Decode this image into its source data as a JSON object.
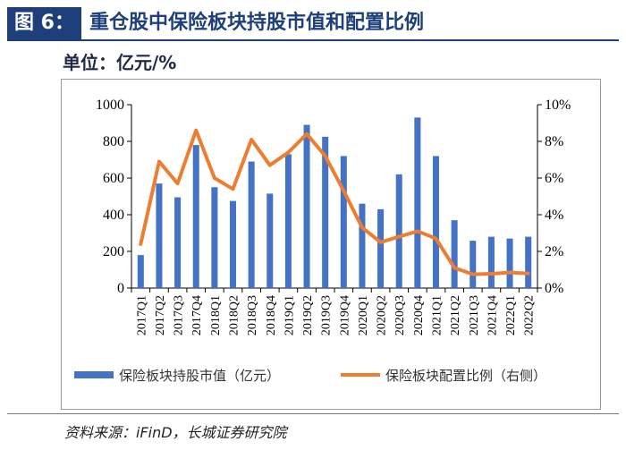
{
  "header": {
    "tag": "图 6：",
    "title": "重仓股中保险板块持股市值和配置比例"
  },
  "unit": "单位：亿元/%",
  "source": "资料来源：iFinD，长城证券研究院",
  "colors": {
    "bar": "#4472c4",
    "line": "#ed7d31",
    "title": "#1f3f7a"
  },
  "chart_data": {
    "type": "bar",
    "categories": [
      "2017Q1",
      "2017Q2",
      "2017Q3",
      "2017Q4",
      "2018Q1",
      "2018Q2",
      "2018Q3",
      "2018Q4",
      "2019Q1",
      "2019Q2",
      "2019Q3",
      "2019Q4",
      "2020Q1",
      "2020Q2",
      "2020Q3",
      "2020Q4",
      "2021Q1",
      "2021Q2",
      "2021Q3",
      "2021Q4",
      "2022Q1",
      "2022Q2"
    ],
    "series": [
      {
        "name": "保险板块持股市值（亿元）",
        "type": "bar",
        "axis": "left",
        "values": [
          180,
          570,
          495,
          780,
          550,
          475,
          690,
          515,
          730,
          890,
          825,
          720,
          460,
          430,
          620,
          930,
          720,
          370,
          258,
          280,
          270,
          280
        ]
      },
      {
        "name": "保险板块配置比例（右侧）",
        "type": "line",
        "axis": "right",
        "values": [
          2.4,
          6.9,
          5.7,
          8.6,
          6.0,
          5.4,
          8.1,
          6.7,
          7.4,
          8.4,
          7.2,
          5.3,
          3.3,
          2.5,
          2.8,
          3.1,
          2.7,
          1.1,
          0.75,
          0.78,
          0.85,
          0.8
        ]
      }
    ],
    "y_left": {
      "ticks": [
        "0",
        "200",
        "400",
        "600",
        "800",
        "1000"
      ],
      "ylim": [
        0,
        1000
      ]
    },
    "y_right": {
      "ticks": [
        "0%",
        "2%",
        "4%",
        "6%",
        "8%",
        "10%"
      ],
      "ylim": [
        0,
        10
      ]
    },
    "grid": false,
    "legend": "bottom"
  }
}
